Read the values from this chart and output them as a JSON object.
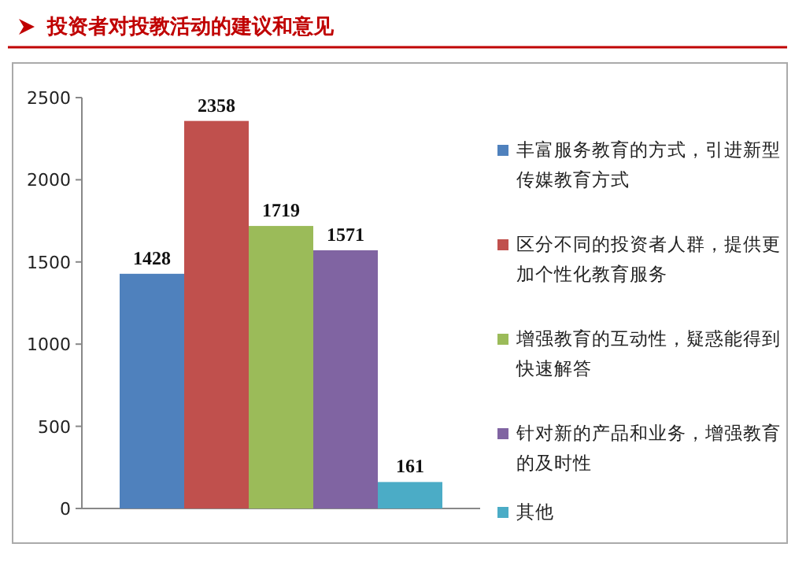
{
  "chart_data": {
    "type": "bar",
    "title": "投资者对投教活动的建议和意见",
    "categories": [
      null
    ],
    "series": [
      {
        "name": "丰富服务教育的方式，引进新型传媒教育方式",
        "color": "#4f81bd",
        "values": [
          1428
        ]
      },
      {
        "name": "区分不同的投资者人群，提供更加个性化教育服务",
        "color": "#c0504d",
        "values": [
          2358
        ]
      },
      {
        "name": "增强教育的互动性，疑惑能得到快速解答",
        "color": "#9bbb59",
        "values": [
          1719
        ]
      },
      {
        "name": "针对新的产品和业务，增强教育的及时性",
        "color": "#8064a2",
        "values": [
          1571
        ]
      },
      {
        "name": "其他",
        "color": "#4bacc6",
        "values": [
          161
        ]
      }
    ],
    "ylim": [
      0,
      2500
    ],
    "yticks": [
      0,
      500,
      1000,
      1500,
      2000,
      2500
    ],
    "data_labels": true,
    "legend": "right"
  }
}
